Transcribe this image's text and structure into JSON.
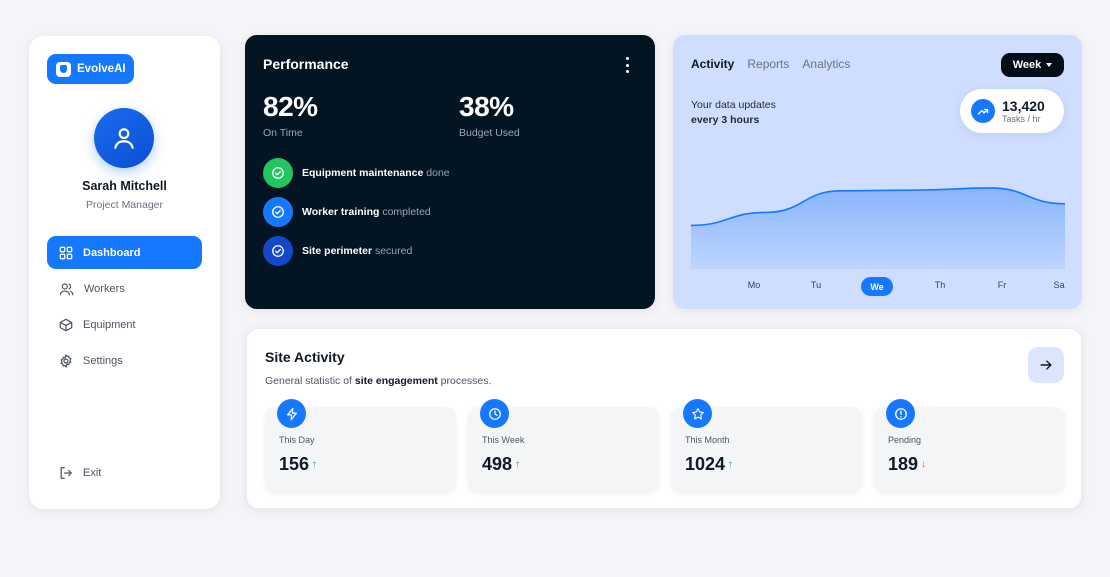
{
  "brand": {
    "name": "EvolveAI"
  },
  "user": {
    "name": "Sarah Mitchell",
    "role": "Project Manager"
  },
  "nav": {
    "items": [
      {
        "label": "Dashboard"
      },
      {
        "label": "Workers"
      },
      {
        "label": "Equipment"
      },
      {
        "label": "Settings"
      }
    ],
    "exit_label": "Exit"
  },
  "performance": {
    "title": "Performance",
    "stats": [
      {
        "value": "82%",
        "label": "On Time"
      },
      {
        "value": "38%",
        "label": "Budget Used"
      }
    ],
    "checks": [
      {
        "strong": "Equipment maintenance",
        "rest": "done",
        "color": "#22c55e"
      },
      {
        "strong": "Worker training",
        "rest": "completed",
        "color": "#1677ff"
      },
      {
        "strong": "Site perimeter",
        "rest": "secured",
        "color": "#1547c9"
      }
    ]
  },
  "activity": {
    "tabs": [
      "Activity",
      "Reports",
      "Analytics"
    ],
    "range_label": "Week",
    "update_text": "Your data updates",
    "update_freq": "every 3 hours",
    "tasks_value": "13,420",
    "tasks_unit": "Tasks / hr",
    "days": [
      "Mo",
      "Tu",
      "We",
      "Th",
      "Fr",
      "Sa"
    ],
    "selected_day": "We",
    "trend_levels": [
      0.3,
      0.48,
      0.78,
      0.79,
      0.82,
      0.6
    ]
  },
  "site": {
    "title": "Site Activity",
    "subtitle_prefix": "General statistic of",
    "subtitle_strong": "site engagement",
    "subtitle_suffix": "processes.",
    "stats": [
      {
        "label": "This Day",
        "value": "156",
        "trend": "↑",
        "trend_dir": "up",
        "icon": "bolt-icon"
      },
      {
        "label": "This Week",
        "value": "498",
        "trend": "↑",
        "trend_dir": "up",
        "icon": "clock-icon"
      },
      {
        "label": "This Month",
        "value": "1024",
        "trend": "↑",
        "trend_dir": "up",
        "icon": "star-icon"
      },
      {
        "label": "Pending",
        "value": "189",
        "trend": "↓",
        "trend_dir": "down",
        "icon": "alert-icon"
      }
    ]
  },
  "colors": {
    "accent": "#1677ff",
    "dark_card": "#031423",
    "activity_bg": "#cfdefe"
  }
}
